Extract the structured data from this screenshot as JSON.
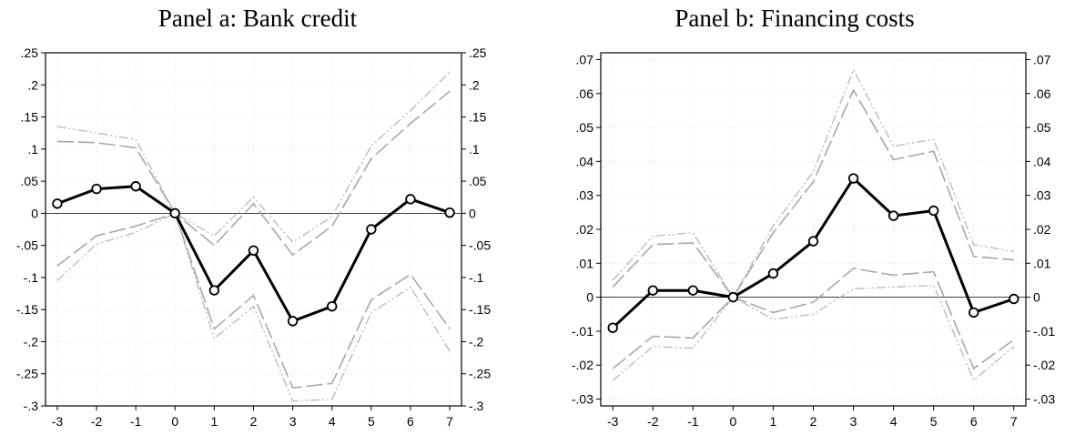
{
  "chart_data": [
    {
      "type": "line",
      "title": "Panel a: Bank credit",
      "x": [
        -3,
        -2,
        -1,
        0,
        1,
        2,
        3,
        4,
        5,
        6,
        7
      ],
      "ylim": [
        -0.3,
        0.25
      ],
      "yticks": [
        0.25,
        0.2,
        0.15,
        0.1,
        0.05,
        0,
        -0.05,
        -0.1,
        -0.15,
        -0.2,
        -0.25,
        -0.3
      ],
      "ytick_labels": [
        ".25",
        ".2",
        ".15",
        ".1",
        ".05",
        "0",
        "-.05",
        "-.1",
        "-.15",
        "-.2",
        "-.25",
        "-.3"
      ],
      "grid": true,
      "series": [
        {
          "role": "estimate",
          "values": [
            0.015,
            0.038,
            0.042,
            0.0,
            -0.12,
            -0.058,
            -0.168,
            -0.145,
            -0.025,
            0.022,
            0.001
          ]
        },
        {
          "role": "ci95_upper",
          "values": [
            0.112,
            0.11,
            0.102,
            0.0,
            -0.05,
            0.015,
            -0.065,
            -0.02,
            0.085,
            0.14,
            0.19
          ]
        },
        {
          "role": "ci95_lower",
          "values": [
            -0.082,
            -0.035,
            -0.02,
            0.0,
            -0.18,
            -0.128,
            -0.272,
            -0.265,
            -0.135,
            -0.095,
            -0.18
          ]
        },
        {
          "role": "ci99_upper",
          "values": [
            0.135,
            0.125,
            0.115,
            0.0,
            -0.035,
            0.025,
            -0.045,
            -0.005,
            0.105,
            0.16,
            0.22
          ]
        },
        {
          "role": "ci99_lower",
          "values": [
            -0.105,
            -0.048,
            -0.03,
            0.0,
            -0.195,
            -0.145,
            -0.292,
            -0.29,
            -0.155,
            -0.115,
            -0.215
          ]
        }
      ]
    },
    {
      "type": "line",
      "title": "Panel b: Financing costs",
      "x": [
        -3,
        -2,
        -1,
        0,
        1,
        2,
        3,
        4,
        5,
        6,
        7
      ],
      "ylim": [
        -0.032,
        0.072
      ],
      "yticks": [
        0.07,
        0.06,
        0.05,
        0.04,
        0.03,
        0.02,
        0.01,
        0,
        -0.01,
        -0.02,
        -0.03
      ],
      "ytick_labels": [
        ".07",
        ".06",
        ".05",
        ".04",
        ".03",
        ".02",
        ".01",
        "0",
        "-.01",
        "-.02",
        "-.03"
      ],
      "grid": true,
      "series": [
        {
          "role": "estimate",
          "values": [
            -0.009,
            0.002,
            0.002,
            0.0,
            0.007,
            0.0165,
            0.035,
            0.024,
            0.0255,
            -0.0045,
            -0.0005
          ]
        },
        {
          "role": "ci95_upper",
          "values": [
            0.003,
            0.0155,
            0.016,
            0.0,
            0.019,
            0.034,
            0.061,
            0.0405,
            0.043,
            0.012,
            0.011
          ]
        },
        {
          "role": "ci95_lower",
          "values": [
            -0.021,
            -0.0115,
            -0.012,
            0.0,
            -0.0045,
            -0.0015,
            0.0085,
            0.0065,
            0.0075,
            -0.021,
            -0.0125
          ]
        },
        {
          "role": "ci99_upper",
          "values": [
            0.005,
            0.018,
            0.019,
            0.0,
            0.021,
            0.037,
            0.067,
            0.0445,
            0.0465,
            0.0155,
            0.0135
          ]
        },
        {
          "role": "ci99_lower",
          "values": [
            -0.0245,
            -0.0145,
            -0.015,
            0.0,
            -0.0065,
            -0.005,
            0.0025,
            0.003,
            0.0035,
            -0.0245,
            -0.0145
          ]
        }
      ]
    }
  ]
}
